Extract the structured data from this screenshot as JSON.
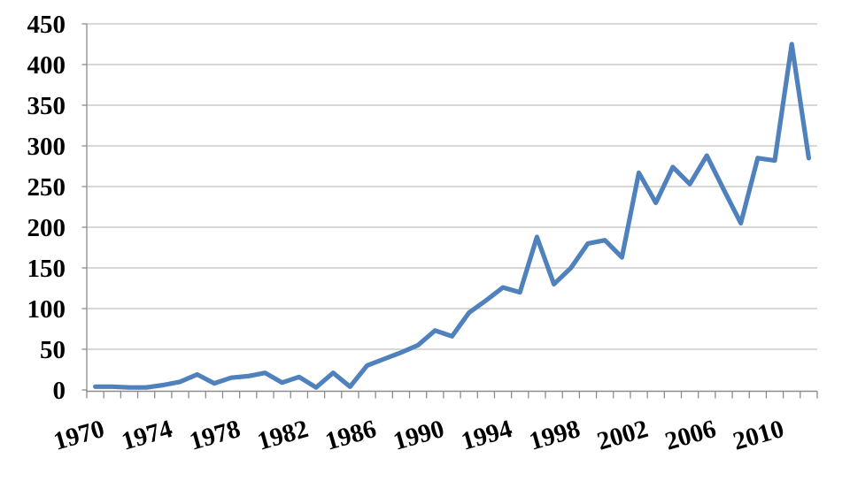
{
  "chart_data": {
    "type": "line",
    "title": "",
    "xlabel": "",
    "ylabel": "",
    "x": [
      1970,
      1971,
      1972,
      1973,
      1974,
      1975,
      1976,
      1977,
      1978,
      1979,
      1980,
      1981,
      1982,
      1983,
      1984,
      1985,
      1986,
      1987,
      1988,
      1989,
      1990,
      1991,
      1992,
      1993,
      1994,
      1995,
      1996,
      1997,
      1998,
      1999,
      2000,
      2001,
      2002,
      2003,
      2004,
      2005,
      2006,
      2007,
      2008,
      2009,
      2010,
      2011,
      2012
    ],
    "values": [
      4,
      4,
      3,
      3,
      6,
      10,
      19,
      8,
      15,
      17,
      21,
      9,
      16,
      3,
      21,
      4,
      30,
      38,
      46,
      55,
      73,
      66,
      95,
      110,
      126,
      120,
      188,
      130,
      150,
      180,
      184,
      163,
      267,
      230,
      274,
      253,
      288,
      246,
      205,
      285,
      282,
      425,
      285
    ],
    "ylim": [
      0,
      450
    ],
    "ytick_step": 50,
    "ytick_labels": [
      "0",
      "50",
      "100",
      "150",
      "200",
      "250",
      "300",
      "350",
      "400",
      "450"
    ],
    "xtick_labels": [
      "1970",
      "1974",
      "1978",
      "1982",
      "1986",
      "1990",
      "1994",
      "1998",
      "2002",
      "2006",
      "2010"
    ],
    "xtick_label_every": 4,
    "grid": true,
    "legend_position": "none",
    "line_color": "#4F81BD",
    "gridline_color": "#BFBFBF",
    "axis_color": "#8C8C8C",
    "text_color": "#000000",
    "background_color": "#FFFFFF"
  }
}
